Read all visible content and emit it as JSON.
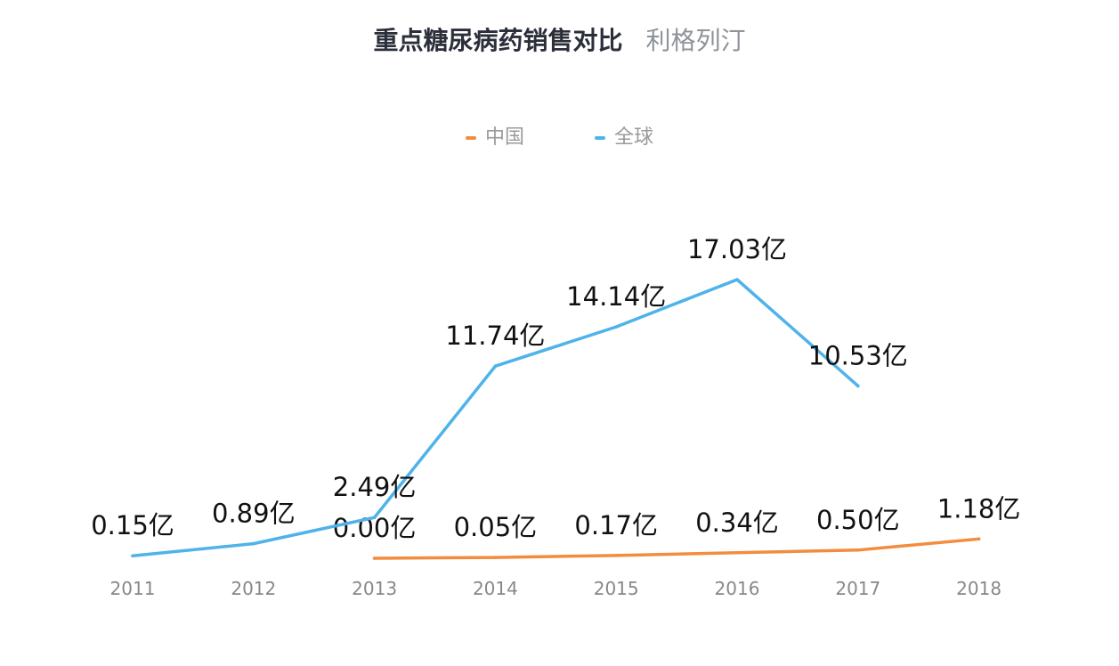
{
  "title": "重点糖尿病药销售对比",
  "subtitle": "利格列汀",
  "chart_data": {
    "type": "line",
    "categories": [
      "2011",
      "2012",
      "2013",
      "2014",
      "2015",
      "2016",
      "2017",
      "2018"
    ],
    "series": [
      {
        "name": "中国",
        "color": "#f28c3e",
        "values": [
          null,
          null,
          0.0,
          0.05,
          0.17,
          0.34,
          0.5,
          1.18
        ],
        "labels": [
          null,
          null,
          "0.00亿",
          "0.05亿",
          "0.17亿",
          "0.34亿",
          "0.50亿",
          "1.18亿"
        ]
      },
      {
        "name": "全球",
        "color": "#4fb3ea",
        "values": [
          0.15,
          0.89,
          2.49,
          11.74,
          14.14,
          17.03,
          10.53,
          null
        ],
        "labels": [
          "0.15亿",
          "0.89亿",
          "2.49亿",
          "11.74亿",
          "14.14亿",
          "17.03亿",
          "10.53亿",
          null
        ]
      }
    ],
    "legend_position": "top-center",
    "grid": false,
    "xlabel": "",
    "ylabel": ""
  }
}
